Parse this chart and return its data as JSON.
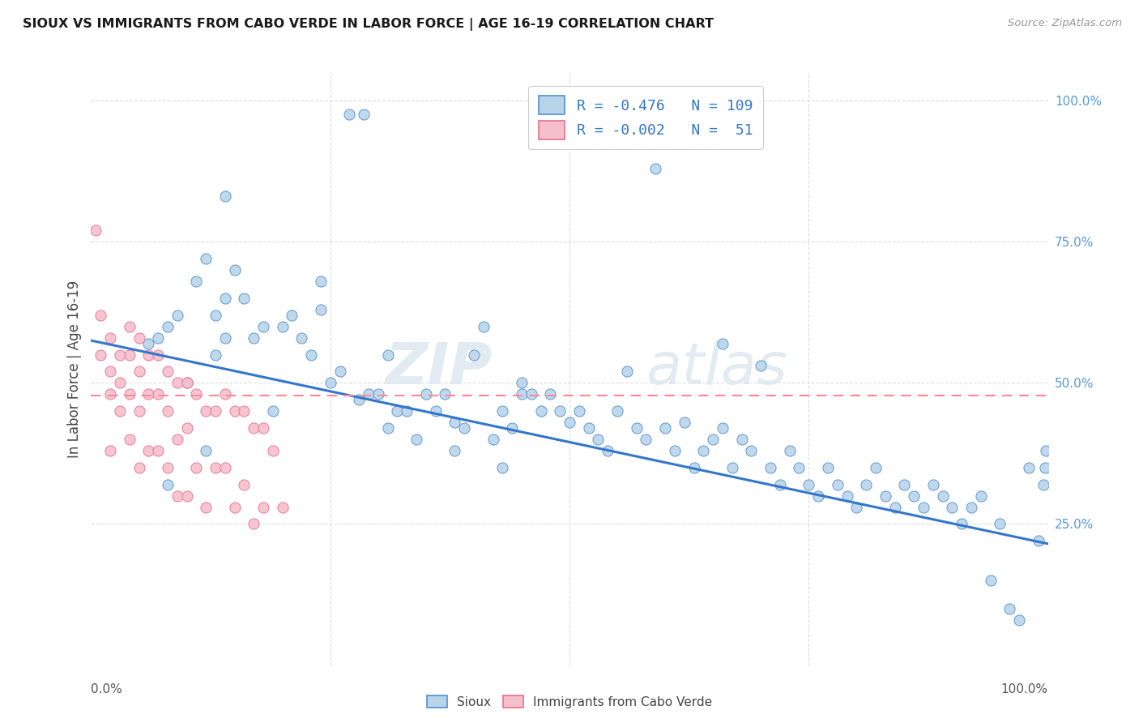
{
  "title": "SIOUX VS IMMIGRANTS FROM CABO VERDE IN LABOR FORCE | AGE 16-19 CORRELATION CHART",
  "source": "Source: ZipAtlas.com",
  "ylabel": "In Labor Force | Age 16-19",
  "watermark_zip": "ZIP",
  "watermark_atlas": "atlas",
  "color_sioux_fill": "#b8d4ea",
  "color_sioux_edge": "#5590cc",
  "color_cabo_fill": "#f5bfcc",
  "color_cabo_edge": "#e87090",
  "color_line_sioux": "#3377cc",
  "color_line_cabo": "#ff8899",
  "color_grid": "#dddddd",
  "right_tick_color": "#5599dd",
  "sioux_x": [
    0.27,
    0.285,
    0.06,
    0.07,
    0.08,
    0.09,
    0.1,
    0.11,
    0.12,
    0.13,
    0.13,
    0.14,
    0.14,
    0.15,
    0.16,
    0.17,
    0.18,
    0.2,
    0.21,
    0.22,
    0.23,
    0.24,
    0.25,
    0.26,
    0.28,
    0.29,
    0.3,
    0.31,
    0.32,
    0.33,
    0.34,
    0.35,
    0.36,
    0.37,
    0.38,
    0.39,
    0.4,
    0.41,
    0.42,
    0.43,
    0.44,
    0.45,
    0.46,
    0.47,
    0.48,
    0.49,
    0.5,
    0.51,
    0.52,
    0.53,
    0.54,
    0.55,
    0.56,
    0.57,
    0.58,
    0.6,
    0.61,
    0.62,
    0.63,
    0.64,
    0.65,
    0.66,
    0.67,
    0.68,
    0.69,
    0.7,
    0.71,
    0.72,
    0.73,
    0.74,
    0.75,
    0.76,
    0.77,
    0.78,
    0.79,
    0.8,
    0.81,
    0.82,
    0.83,
    0.84,
    0.85,
    0.86,
    0.87,
    0.88,
    0.89,
    0.9,
    0.91,
    0.92,
    0.93,
    0.94,
    0.95,
    0.96,
    0.97,
    0.98,
    0.99,
    0.995,
    0.997,
    0.998,
    0.24,
    0.59,
    0.38,
    0.43,
    0.14,
    0.19,
    0.08,
    0.12,
    0.45,
    0.31,
    0.66
  ],
  "sioux_y": [
    0.975,
    0.975,
    0.57,
    0.58,
    0.6,
    0.62,
    0.5,
    0.68,
    0.72,
    0.62,
    0.55,
    0.65,
    0.58,
    0.7,
    0.65,
    0.58,
    0.6,
    0.6,
    0.62,
    0.58,
    0.55,
    0.68,
    0.5,
    0.52,
    0.47,
    0.48,
    0.48,
    0.42,
    0.45,
    0.45,
    0.4,
    0.48,
    0.45,
    0.48,
    0.43,
    0.42,
    0.55,
    0.6,
    0.4,
    0.35,
    0.42,
    0.48,
    0.48,
    0.45,
    0.48,
    0.45,
    0.43,
    0.45,
    0.42,
    0.4,
    0.38,
    0.45,
    0.52,
    0.42,
    0.4,
    0.42,
    0.38,
    0.43,
    0.35,
    0.38,
    0.4,
    0.42,
    0.35,
    0.4,
    0.38,
    0.53,
    0.35,
    0.32,
    0.38,
    0.35,
    0.32,
    0.3,
    0.35,
    0.32,
    0.3,
    0.28,
    0.32,
    0.35,
    0.3,
    0.28,
    0.32,
    0.3,
    0.28,
    0.32,
    0.3,
    0.28,
    0.25,
    0.28,
    0.3,
    0.15,
    0.25,
    0.1,
    0.08,
    0.35,
    0.22,
    0.32,
    0.35,
    0.38,
    0.63,
    0.88,
    0.38,
    0.45,
    0.83,
    0.45,
    0.32,
    0.38,
    0.5,
    0.55,
    0.57
  ],
  "cabo_x": [
    0.005,
    0.01,
    0.01,
    0.02,
    0.02,
    0.02,
    0.02,
    0.03,
    0.03,
    0.03,
    0.04,
    0.04,
    0.04,
    0.04,
    0.05,
    0.05,
    0.05,
    0.05,
    0.06,
    0.06,
    0.06,
    0.07,
    0.07,
    0.07,
    0.08,
    0.08,
    0.08,
    0.09,
    0.09,
    0.09,
    0.1,
    0.1,
    0.1,
    0.11,
    0.11,
    0.12,
    0.12,
    0.13,
    0.13,
    0.14,
    0.14,
    0.15,
    0.15,
    0.16,
    0.16,
    0.17,
    0.17,
    0.18,
    0.18,
    0.19,
    0.2
  ],
  "cabo_y": [
    0.77,
    0.62,
    0.55,
    0.58,
    0.52,
    0.48,
    0.38,
    0.55,
    0.5,
    0.45,
    0.6,
    0.55,
    0.48,
    0.4,
    0.58,
    0.52,
    0.45,
    0.35,
    0.55,
    0.48,
    0.38,
    0.55,
    0.48,
    0.38,
    0.52,
    0.45,
    0.35,
    0.5,
    0.4,
    0.3,
    0.5,
    0.42,
    0.3,
    0.48,
    0.35,
    0.45,
    0.28,
    0.45,
    0.35,
    0.48,
    0.35,
    0.45,
    0.28,
    0.45,
    0.32,
    0.42,
    0.25,
    0.42,
    0.28,
    0.38,
    0.28
  ],
  "trend_sioux_x0": 0.0,
  "trend_sioux_y0": 0.575,
  "trend_sioux_x1": 1.0,
  "trend_sioux_y1": 0.215,
  "trend_cabo_y": 0.478,
  "xlim": [
    0.0,
    1.0
  ],
  "ylim": [
    0.0,
    1.05
  ],
  "hgrid": [
    0.25,
    0.5,
    0.75,
    1.0
  ],
  "vgrid": [
    0.25,
    0.5,
    0.75,
    1.0
  ]
}
